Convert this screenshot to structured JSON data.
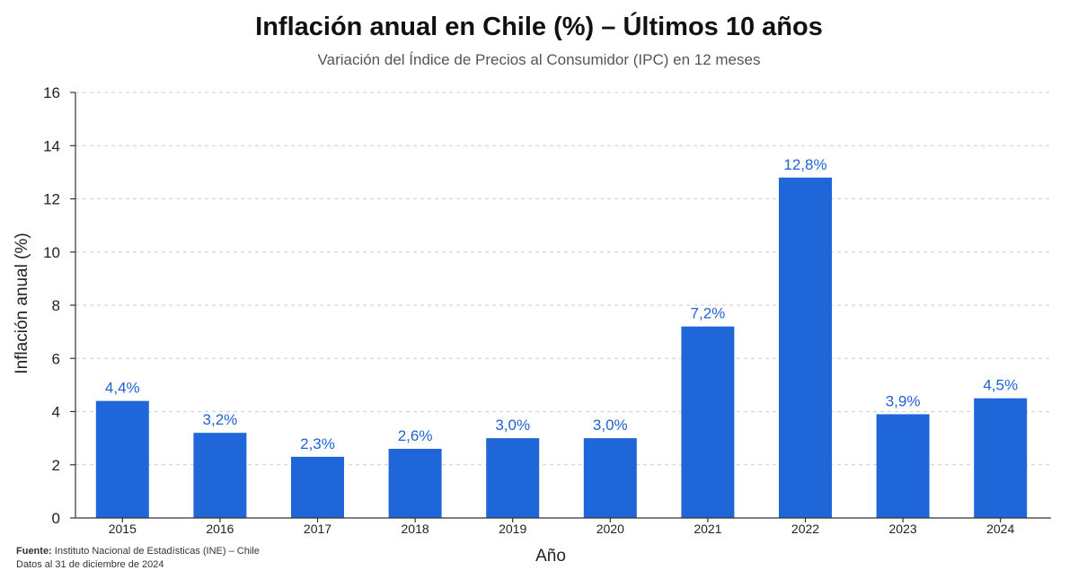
{
  "chart_data": {
    "type": "bar",
    "title": "Inflación anual en Chile (%) – Últimos 10 años",
    "subtitle": "Variación del Índice de Precios al Consumidor (IPC) en 12 meses",
    "xlabel": "Año",
    "ylabel": "Inflación anual (%)",
    "categories": [
      "2015",
      "2016",
      "2017",
      "2018",
      "2019",
      "2020",
      "2021",
      "2022",
      "2023",
      "2024"
    ],
    "values": [
      4.4,
      3.2,
      2.3,
      2.6,
      3.0,
      3.0,
      7.2,
      12.8,
      3.9,
      4.5
    ],
    "data_labels": [
      "4,4%",
      "3,2%",
      "2,3%",
      "2,6%",
      "3,0%",
      "3,0%",
      "7,2%",
      "12,8%",
      "3,9%",
      "4,5%"
    ],
    "ylim": [
      0,
      16
    ],
    "yticks": [
      0,
      2,
      4,
      6,
      8,
      10,
      12,
      14,
      16
    ],
    "grid": true,
    "bar_color": "#1f66d9",
    "label_color": "#1f62d2"
  },
  "footer": {
    "source_label": "Fuente:",
    "source_text": " Instituto Nacional de Estadísticas (INE) – Chile",
    "date_note": "Datos al 31 de diciembre de 2024"
  }
}
